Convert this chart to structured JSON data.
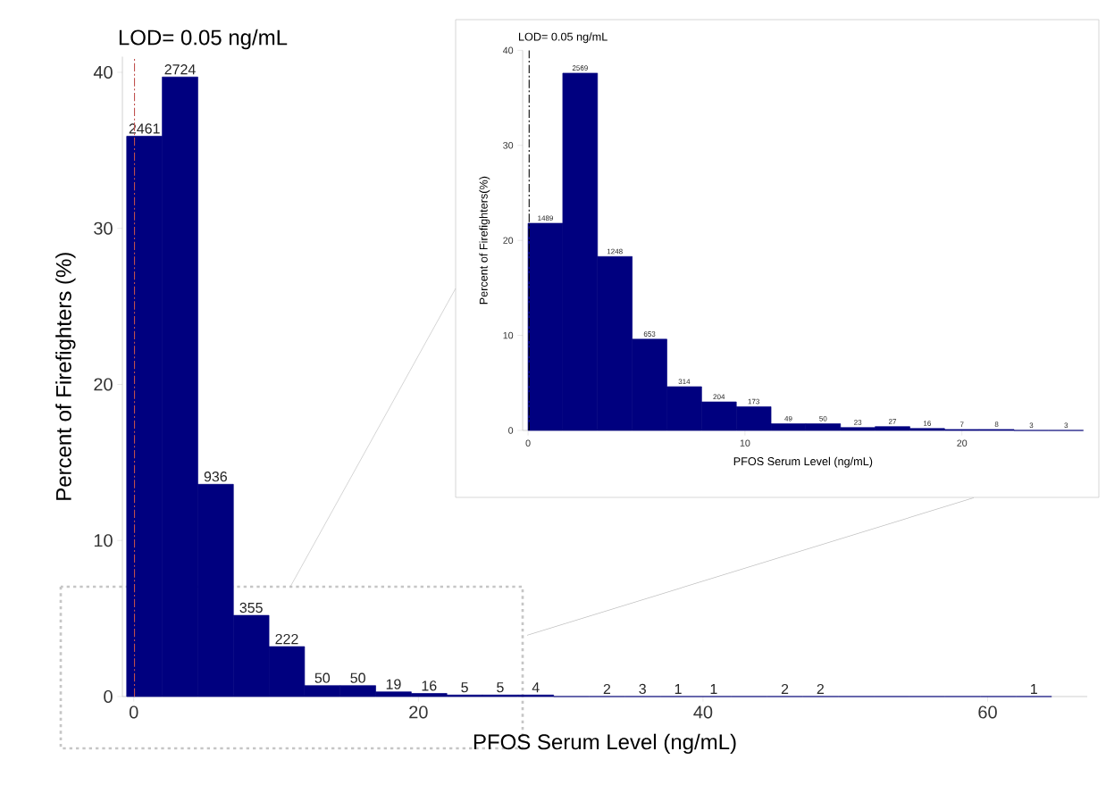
{
  "chart_data": [
    {
      "type": "histogram",
      "xlabel": "PFOS Serum Level (ng/mL)",
      "ylabel": "Percent of Firefighters (%)",
      "color": "#00007f",
      "bins": [
        -0.5,
        2,
        4.5,
        7,
        9.5,
        12,
        14.5,
        17,
        19.5,
        22,
        24.5,
        27,
        29.5,
        32,
        34.5,
        37,
        39.5,
        42,
        44.5,
        47,
        49.5,
        52,
        54.5,
        57,
        59.5,
        62,
        64.5
      ],
      "values": [
        35.9,
        39.7,
        13.6,
        5.2,
        3.2,
        0.7,
        0.7,
        0.3,
        0.2,
        0.1,
        0.1,
        0.1,
        0,
        0,
        0,
        0,
        0,
        0,
        0,
        0,
        0,
        0,
        0,
        0,
        0,
        0
      ],
      "xlim": [
        -0.8,
        67
      ],
      "ylim": [
        0,
        41
      ],
      "xticks": [
        0,
        20,
        40,
        60
      ],
      "yticks": [
        0,
        10,
        20,
        30,
        40
      ],
      "annotations": [
        {
          "text": "2461",
          "x": 0.75,
          "y": 35.9
        },
        {
          "text": "2724",
          "x": 3.25,
          "y": 39.7
        },
        {
          "text": "936",
          "x": 5.75,
          "y": 13.6
        },
        {
          "text": "355",
          "x": 8.25,
          "y": 5.2
        },
        {
          "text": "222",
          "x": 10.75,
          "y": 3.2
        },
        {
          "text": "50",
          "x": 13.25,
          "y": 0.7
        },
        {
          "text": "50",
          "x": 15.75,
          "y": 0.7
        },
        {
          "text": "19",
          "x": 18.25,
          "y": 0.3
        },
        {
          "text": "16",
          "x": 20.75,
          "y": 0.2
        },
        {
          "text": "5",
          "x": 23.25,
          "y": 0.1
        },
        {
          "text": "5",
          "x": 25.75,
          "y": 0.1
        },
        {
          "text": "4",
          "x": 28.25,
          "y": 0.1
        },
        {
          "text": "2",
          "x": 33.25,
          "y": 0
        },
        {
          "text": "3",
          "x": 35.75,
          "y": 0
        },
        {
          "text": "1",
          "x": 38.25,
          "y": 0
        },
        {
          "text": "1",
          "x": 40.75,
          "y": 0
        },
        {
          "text": "2",
          "x": 45.75,
          "y": 0
        },
        {
          "text": "2",
          "x": 48.25,
          "y": 0
        },
        {
          "text": "1",
          "x": 63.25,
          "y": 0
        }
      ],
      "ref_lines": [
        {
          "axis": "x",
          "value": 0.05,
          "label": "LOD= 0.05 ng/mL",
          "color": "#c0504d",
          "line_style": "dashed"
        }
      ]
    },
    {
      "type": "histogram",
      "xlabel": "PFOS Serum Level (ng/mL)",
      "ylabel": "Percent of Firefighters(%)",
      "color": "#00007f",
      "bins": [
        0,
        1.6,
        3.2,
        4.8,
        6.4,
        8,
        9.6,
        11.2,
        12.8,
        14.4,
        16,
        17.6,
        19.2,
        20.8,
        22.4,
        24,
        25.6
      ],
      "values": [
        21.8,
        37.6,
        18.3,
        9.6,
        4.6,
        3.0,
        2.5,
        0.7,
        0.7,
        0.3,
        0.4,
        0.2,
        0.1,
        0.1,
        0,
        0
      ],
      "xlim": [
        -0.25,
        25.6
      ],
      "ylim": [
        0,
        40
      ],
      "xticks": [
        0,
        10,
        20
      ],
      "yticks": [
        0,
        10,
        20,
        30,
        40
      ],
      "annotations": [
        {
          "text": "1489",
          "x": 0.8,
          "y": 21.8
        },
        {
          "text": "2569",
          "x": 2.4,
          "y": 37.6
        },
        {
          "text": "1248",
          "x": 4,
          "y": 18.3
        },
        {
          "text": "653",
          "x": 5.6,
          "y": 9.6
        },
        {
          "text": "314",
          "x": 7.2,
          "y": 4.6
        },
        {
          "text": "204",
          "x": 8.8,
          "y": 3.0
        },
        {
          "text": "173",
          "x": 10.4,
          "y": 2.5
        },
        {
          "text": "49",
          "x": 12,
          "y": 0.7
        },
        {
          "text": "50",
          "x": 13.6,
          "y": 0.7
        },
        {
          "text": "23",
          "x": 15.2,
          "y": 0.3
        },
        {
          "text": "27",
          "x": 16.8,
          "y": 0.4
        },
        {
          "text": "16",
          "x": 18.4,
          "y": 0.2
        },
        {
          "text": "7",
          "x": 20,
          "y": 0.1
        },
        {
          "text": "8",
          "x": 21.6,
          "y": 0.1
        },
        {
          "text": "3",
          "x": 23.2,
          "y": 0
        },
        {
          "text": "3",
          "x": 24.8,
          "y": 0
        }
      ],
      "ref_lines": [
        {
          "axis": "x",
          "value": 0.05,
          "label": "LOD= 0.05 ng/mL",
          "color": "#000000",
          "line_style": "dashed"
        }
      ]
    }
  ]
}
